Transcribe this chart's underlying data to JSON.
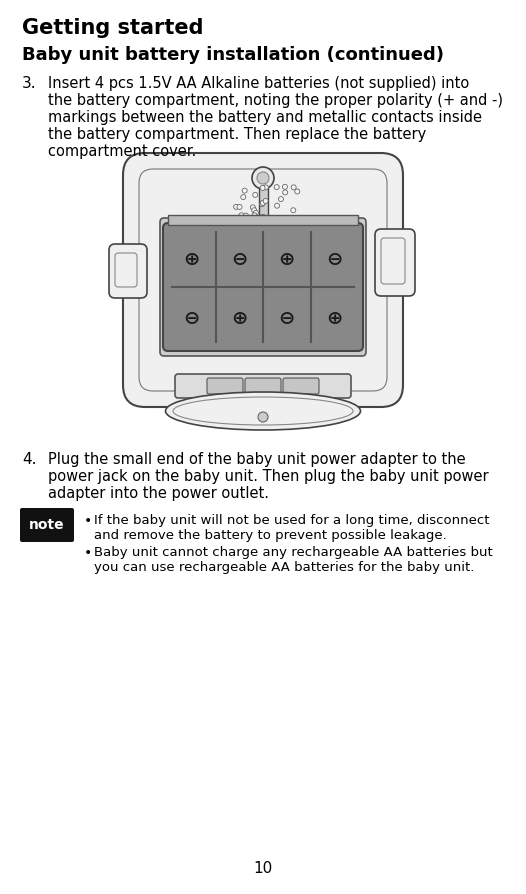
{
  "title": "Getting started",
  "subtitle": "Baby unit battery installation (continued)",
  "step3_label": "3.",
  "step3_line1": "Insert 4 pcs 1.5V AA Alkaline batteries (not supplied) into",
  "step3_line2": "the battery compartment, noting the proper polarity (+ and -)",
  "step3_line3": "markings between the battery and metallic contacts inside",
  "step3_line4": "the battery compartment. Then replace the battery",
  "step3_line5": "compartment cover.",
  "step4_label": "4.",
  "step4_line1": "Plug the small end of the baby unit power adapter to the",
  "step4_line2": "power jack on the baby unit. Then plug the baby unit power",
  "step4_line3": "adapter into the power outlet.",
  "note_label": "note",
  "note_bullet1_line1": "If the baby unit will not be used for a long time, disconnect",
  "note_bullet1_line2": "and remove the battery to prevent possible leakage.",
  "note_bullet2_line1": "Baby unit cannot charge any rechargeable AA batteries but",
  "note_bullet2_line2": "you can use rechargeable AA batteries for the baby unit.",
  "page_number": "10",
  "bg_color": "#ffffff",
  "text_color": "#000000",
  "note_bg": "#111111",
  "note_text_color": "#ffffff",
  "device_edge": "#444444",
  "device_bg": "#f0f0f0",
  "battery_fill": "#888888",
  "battery_darker": "#777777"
}
